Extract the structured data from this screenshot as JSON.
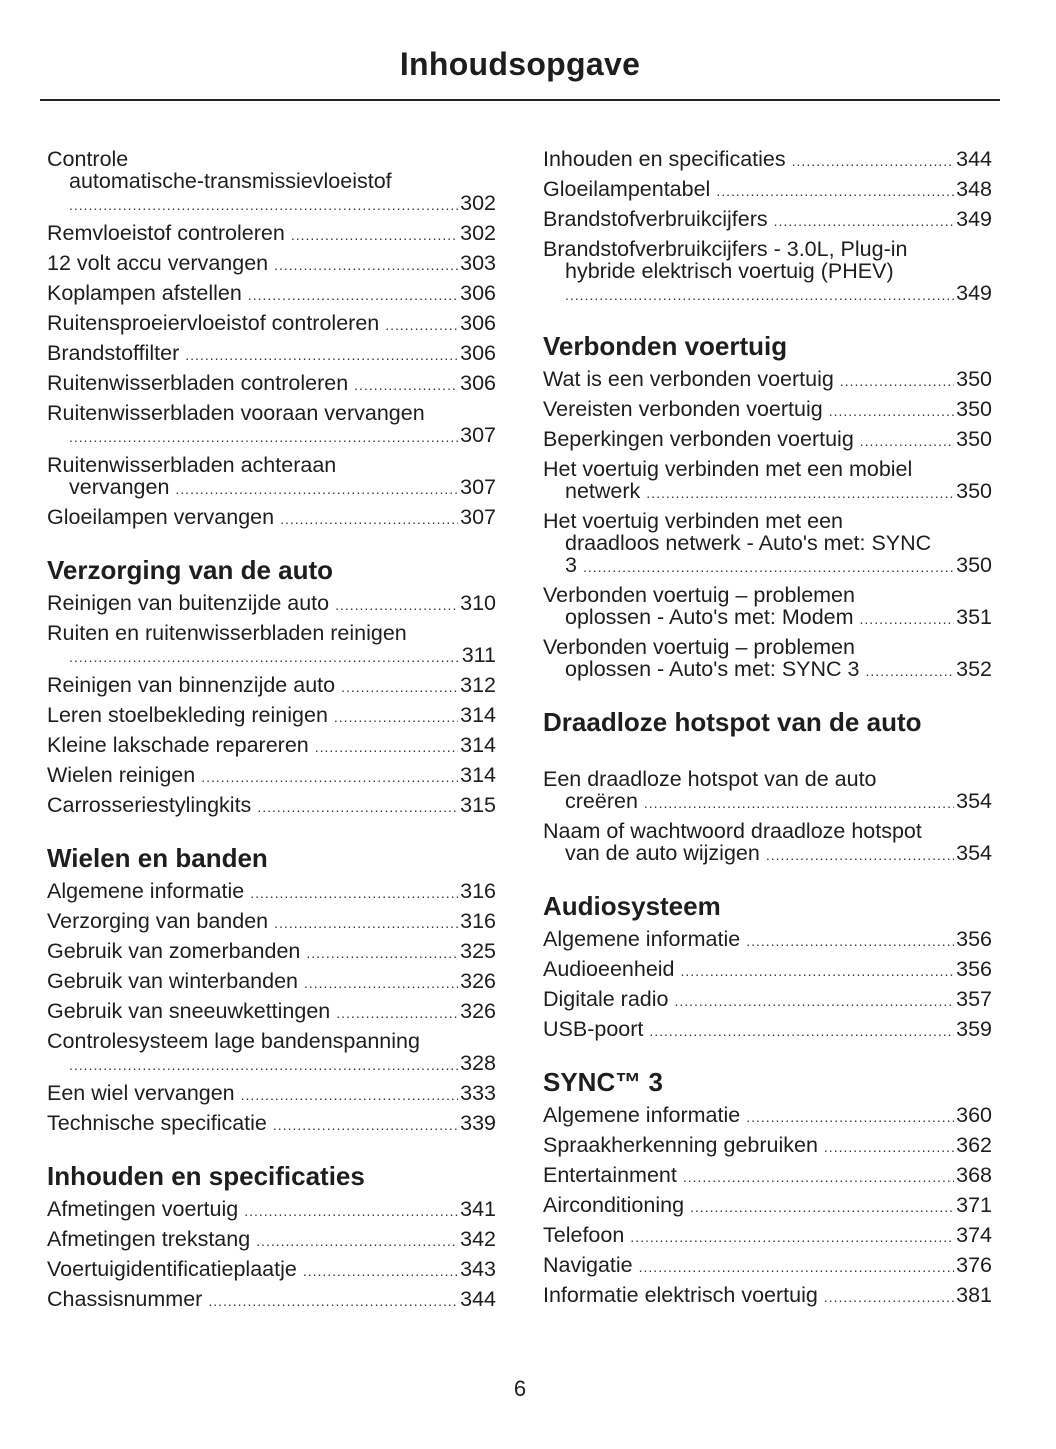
{
  "title": "Inhoudsopgave",
  "page_number": "6",
  "columns": [
    {
      "sections": [
        {
          "title": "",
          "entries": [
            {
              "lines": [
                "Controle",
                "automatische-transmissievloeistof",
                ""
              ],
              "page": "302"
            },
            {
              "lines": [
                "Remvloeistof controleren"
              ],
              "page": "302"
            },
            {
              "lines": [
                "12 volt accu vervangen"
              ],
              "page": "303"
            },
            {
              "lines": [
                "Koplampen afstellen"
              ],
              "page": "306"
            },
            {
              "lines": [
                "Ruitensproeiervloeistof controleren"
              ],
              "page": "306"
            },
            {
              "lines": [
                "Brandstoffilter"
              ],
              "page": "306"
            },
            {
              "lines": [
                "Ruitenwisserbladen controleren"
              ],
              "page": "306"
            },
            {
              "lines": [
                "Ruitenwisserbladen vooraan vervangen",
                ""
              ],
              "page": "307"
            },
            {
              "lines": [
                "Ruitenwisserbladen achteraan",
                "vervangen"
              ],
              "page": "307"
            },
            {
              "lines": [
                "Gloeilampen vervangen"
              ],
              "page": "307"
            }
          ]
        },
        {
          "title": "Verzorging van de auto",
          "entries": [
            {
              "lines": [
                "Reinigen van buitenzijde auto"
              ],
              "page": "310"
            },
            {
              "lines": [
                "Ruiten en ruitenwisserbladen reinigen",
                ""
              ],
              "page": "311"
            },
            {
              "lines": [
                "Reinigen van binnenzijde auto"
              ],
              "page": "312"
            },
            {
              "lines": [
                "Leren stoelbekleding reinigen"
              ],
              "page": "314"
            },
            {
              "lines": [
                "Kleine lakschade repareren"
              ],
              "page": "314"
            },
            {
              "lines": [
                "Wielen reinigen"
              ],
              "page": "314"
            },
            {
              "lines": [
                "Carrosseriestylingkits"
              ],
              "page": "315"
            }
          ]
        },
        {
          "title": "Wielen en banden",
          "entries": [
            {
              "lines": [
                "Algemene informatie"
              ],
              "page": "316"
            },
            {
              "lines": [
                "Verzorging van banden"
              ],
              "page": "316"
            },
            {
              "lines": [
                "Gebruik van zomerbanden"
              ],
              "page": "325"
            },
            {
              "lines": [
                "Gebruik van winterbanden"
              ],
              "page": "326"
            },
            {
              "lines": [
                "Gebruik van sneeuwkettingen"
              ],
              "page": "326"
            },
            {
              "lines": [
                "Controlesysteem lage bandenspanning",
                ""
              ],
              "page": "328"
            },
            {
              "lines": [
                "Een wiel vervangen"
              ],
              "page": "333"
            },
            {
              "lines": [
                "Technische specificatie"
              ],
              "page": "339"
            }
          ]
        },
        {
          "title": "Inhouden en specificaties",
          "entries": [
            {
              "lines": [
                "Afmetingen voertuig"
              ],
              "page": "341"
            },
            {
              "lines": [
                "Afmetingen trekstang"
              ],
              "page": "342"
            },
            {
              "lines": [
                "Voertuigidentificatieplaatje"
              ],
              "page": "343"
            },
            {
              "lines": [
                "Chassisnummer"
              ],
              "page": "344"
            }
          ]
        }
      ]
    },
    {
      "sections": [
        {
          "title": "",
          "entries": [
            {
              "lines": [
                "Inhouden en specificaties"
              ],
              "page": "344"
            },
            {
              "lines": [
                "Gloeilampentabel"
              ],
              "page": "348"
            },
            {
              "lines": [
                "Brandstofverbruikcijfers"
              ],
              "page": "349"
            },
            {
              "lines": [
                "Brandstofverbruikcijfers - 3.0L, Plug-in",
                "hybride elektrisch voertuig (PHEV)",
                ""
              ],
              "page": "349"
            }
          ]
        },
        {
          "title": "Verbonden voertuig",
          "entries": [
            {
              "lines": [
                "Wat is een verbonden voertuig"
              ],
              "page": "350"
            },
            {
              "lines": [
                "Vereisten verbonden voertuig"
              ],
              "page": "350"
            },
            {
              "lines": [
                "Beperkingen verbonden voertuig"
              ],
              "page": "350"
            },
            {
              "lines": [
                "Het voertuig verbinden met een mobiel",
                "netwerk"
              ],
              "page": "350"
            },
            {
              "lines": [
                "Het voertuig verbinden met een",
                "draadloos netwerk - Auto's met: SYNC",
                "3"
              ],
              "page": "350"
            },
            {
              "lines": [
                "Verbonden voertuig – problemen",
                "oplossen - Auto's met: Modem"
              ],
              "page": "351"
            },
            {
              "lines": [
                "Verbonden voertuig – problemen",
                "oplossen - Auto's met: SYNC 3"
              ],
              "page": "352"
            }
          ]
        },
        {
          "title": "Draadloze hotspot van de auto",
          "entries": [
            {
              "lines": [
                "Een draadloze hotspot van de auto",
                "creëren"
              ],
              "page": "354"
            },
            {
              "lines": [
                "Naam of wachtwoord draadloze hotspot",
                "van de auto wijzigen"
              ],
              "page": "354"
            }
          ]
        },
        {
          "title": "Audiosysteem",
          "entries": [
            {
              "lines": [
                "Algemene informatie"
              ],
              "page": "356"
            },
            {
              "lines": [
                "Audioeenheid"
              ],
              "page": "356"
            },
            {
              "lines": [
                "Digitale radio"
              ],
              "page": "357"
            },
            {
              "lines": [
                "USB-poort"
              ],
              "page": "359"
            }
          ]
        },
        {
          "title": "SYNC™ 3",
          "entries": [
            {
              "lines": [
                "Algemene informatie"
              ],
              "page": "360"
            },
            {
              "lines": [
                "Spraakherkenning gebruiken"
              ],
              "page": "362"
            },
            {
              "lines": [
                "Entertainment"
              ],
              "page": "368"
            },
            {
              "lines": [
                "Airconditioning"
              ],
              "page": "371"
            },
            {
              "lines": [
                "Telefoon"
              ],
              "page": "374"
            },
            {
              "lines": [
                "Navigatie"
              ],
              "page": "376"
            },
            {
              "lines": [
                "Informatie elektrisch voertuig"
              ],
              "page": "381"
            }
          ]
        }
      ]
    }
  ]
}
